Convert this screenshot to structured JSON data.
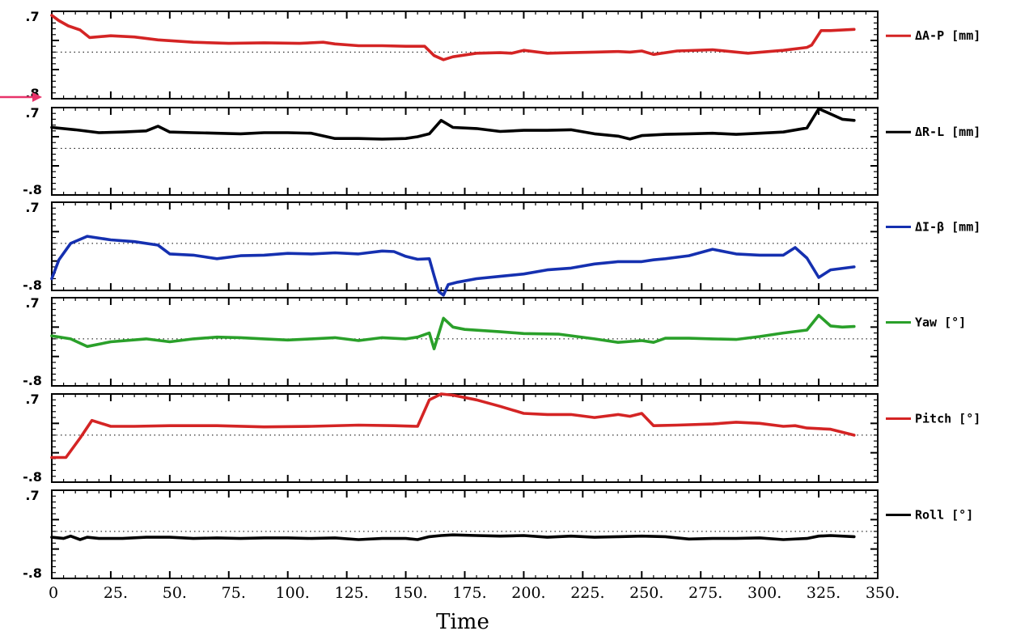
{
  "chart_data": {
    "type": "line",
    "xlabel": "Time",
    "xlim": [
      0,
      350
    ],
    "x_ticks": [
      "0",
      "25.",
      "50.",
      "75.",
      "100.",
      "125.",
      "150.",
      "175.",
      "200.",
      "225.",
      "250.",
      "275.",
      "300.",
      "325.",
      "350."
    ],
    "ylim": [
      -0.8,
      0.7
    ],
    "grid": false,
    "legend_placement": "right of each panel",
    "annotation": {
      "type": "arrow",
      "color": "#e8336a",
      "points_to": "panel 1 lower y tick"
    },
    "panels": [
      {
        "name": "ΔA-P [mm]",
        "color": "#d42424",
        "ytick_top": ".7",
        "ytick_bottom": ".8",
        "x": [
          0,
          3,
          7,
          12,
          16,
          25,
          35,
          45,
          60,
          75,
          90,
          105,
          115,
          120,
          130,
          140,
          150,
          158,
          162,
          166,
          170,
          180,
          190,
          195,
          200,
          210,
          220,
          230,
          240,
          245,
          250,
          255,
          265,
          280,
          295,
          310,
          320,
          322,
          326,
          330,
          340
        ],
        "values": [
          0.63,
          0.54,
          0.45,
          0.38,
          0.25,
          0.28,
          0.26,
          0.21,
          0.17,
          0.15,
          0.16,
          0.15,
          0.17,
          0.14,
          0.11,
          0.11,
          0.1,
          0.1,
          -0.06,
          -0.13,
          -0.08,
          -0.02,
          -0.01,
          -0.02,
          0.03,
          -0.02,
          -0.01,
          0.0,
          0.01,
          0.0,
          0.02,
          -0.04,
          0.02,
          0.04,
          -0.02,
          0.03,
          0.08,
          0.12,
          0.37,
          0.37,
          0.39
        ]
      },
      {
        "name": "ΔR-L [mm]",
        "color": "#000000",
        "ytick_top": ".7",
        "ytick_bottom": "-.8",
        "x": [
          0,
          10,
          20,
          30,
          40,
          45,
          50,
          60,
          70,
          80,
          90,
          100,
          110,
          120,
          130,
          140,
          150,
          155,
          160,
          165,
          170,
          180,
          190,
          200,
          210,
          220,
          230,
          240,
          245,
          250,
          260,
          270,
          280,
          290,
          300,
          310,
          320,
          325,
          330,
          335,
          340
        ],
        "values": [
          0.36,
          0.32,
          0.27,
          0.28,
          0.3,
          0.38,
          0.28,
          0.27,
          0.26,
          0.25,
          0.27,
          0.27,
          0.26,
          0.17,
          0.17,
          0.16,
          0.17,
          0.2,
          0.25,
          0.48,
          0.36,
          0.34,
          0.29,
          0.31,
          0.31,
          0.32,
          0.25,
          0.21,
          0.16,
          0.22,
          0.24,
          0.25,
          0.26,
          0.24,
          0.26,
          0.28,
          0.35,
          0.68,
          0.59,
          0.5,
          0.48
        ]
      },
      {
        "name": "ΔI-β [mm]",
        "color": "#1530b0",
        "ytick_top": ".7",
        "ytick_bottom": "-.8",
        "x": [
          0,
          3,
          8,
          15,
          25,
          35,
          45,
          50,
          60,
          70,
          80,
          90,
          100,
          110,
          120,
          130,
          140,
          145,
          150,
          155,
          160,
          162,
          164,
          166,
          168,
          172,
          180,
          190,
          200,
          210,
          220,
          230,
          240,
          250,
          255,
          260,
          270,
          280,
          290,
          300,
          310,
          315,
          320,
          325,
          330,
          340
        ],
        "values": [
          -0.6,
          -0.28,
          0.0,
          0.12,
          0.06,
          0.03,
          -0.03,
          -0.18,
          -0.2,
          -0.26,
          -0.21,
          -0.2,
          -0.17,
          -0.18,
          -0.16,
          -0.18,
          -0.13,
          -0.14,
          -0.22,
          -0.27,
          -0.26,
          -0.55,
          -0.82,
          -0.88,
          -0.7,
          -0.66,
          -0.6,
          -0.56,
          -0.52,
          -0.45,
          -0.42,
          -0.35,
          -0.31,
          -0.31,
          -0.28,
          -0.26,
          -0.21,
          -0.1,
          -0.18,
          -0.2,
          -0.2,
          -0.07,
          -0.25,
          -0.58,
          -0.45,
          -0.4
        ]
      },
      {
        "name": "Yaw [°]",
        "color": "#2aa02a",
        "ytick_top": ".7",
        "ytick_bottom": "-.8",
        "x": [
          0,
          8,
          15,
          25,
          40,
          50,
          60,
          70,
          80,
          90,
          100,
          110,
          120,
          130,
          140,
          150,
          155,
          160,
          162,
          166,
          170,
          175,
          190,
          200,
          215,
          230,
          240,
          250,
          255,
          260,
          270,
          280,
          290,
          300,
          310,
          320,
          325,
          330,
          335,
          340
        ],
        "values": [
          0.05,
          0.0,
          -0.13,
          -0.05,
          0.0,
          -0.05,
          0.0,
          0.03,
          0.02,
          0.0,
          -0.02,
          0.0,
          0.02,
          -0.03,
          0.02,
          0.0,
          0.03,
          0.1,
          -0.17,
          0.35,
          0.2,
          0.16,
          0.12,
          0.09,
          0.08,
          0.0,
          -0.06,
          -0.03,
          -0.06,
          0.01,
          0.01,
          0.0,
          -0.01,
          0.04,
          0.1,
          0.15,
          0.4,
          0.22,
          0.2,
          0.21
        ]
      },
      {
        "name": "Pitch [°]",
        "color": "#d42424",
        "ytick_top": ".7",
        "ytick_bottom": "-.8",
        "x": [
          0,
          6,
          12,
          17,
          25,
          35,
          50,
          70,
          90,
          110,
          130,
          145,
          155,
          160,
          165,
          170,
          180,
          190,
          200,
          210,
          220,
          230,
          240,
          245,
          250,
          255,
          265,
          280,
          290,
          300,
          310,
          315,
          320,
          330,
          340
        ],
        "values": [
          -0.38,
          -0.38,
          -0.05,
          0.25,
          0.15,
          0.15,
          0.16,
          0.16,
          0.14,
          0.15,
          0.17,
          0.16,
          0.15,
          0.6,
          0.7,
          0.68,
          0.6,
          0.49,
          0.37,
          0.35,
          0.35,
          0.3,
          0.35,
          0.32,
          0.37,
          0.16,
          0.17,
          0.19,
          0.22,
          0.2,
          0.15,
          0.16,
          0.12,
          0.1,
          0.0
        ]
      },
      {
        "name": "Roll [°]",
        "color": "#000000",
        "ytick_top": ".7",
        "ytick_bottom": "-.8",
        "x": [
          0,
          5,
          8,
          12,
          15,
          20,
          30,
          40,
          50,
          60,
          70,
          80,
          90,
          100,
          110,
          120,
          130,
          140,
          150,
          155,
          160,
          165,
          170,
          180,
          190,
          200,
          210,
          220,
          230,
          240,
          250,
          260,
          270,
          280,
          290,
          300,
          310,
          320,
          325,
          330,
          340
        ],
        "values": [
          -0.1,
          -0.12,
          -0.08,
          -0.14,
          -0.1,
          -0.12,
          -0.12,
          -0.1,
          -0.1,
          -0.12,
          -0.11,
          -0.12,
          -0.11,
          -0.11,
          -0.12,
          -0.11,
          -0.14,
          -0.12,
          -0.12,
          -0.14,
          -0.09,
          -0.07,
          -0.06,
          -0.07,
          -0.08,
          -0.07,
          -0.1,
          -0.08,
          -0.1,
          -0.09,
          -0.08,
          -0.09,
          -0.13,
          -0.12,
          -0.12,
          -0.11,
          -0.14,
          -0.12,
          -0.08,
          -0.07,
          -0.09
        ]
      }
    ]
  }
}
